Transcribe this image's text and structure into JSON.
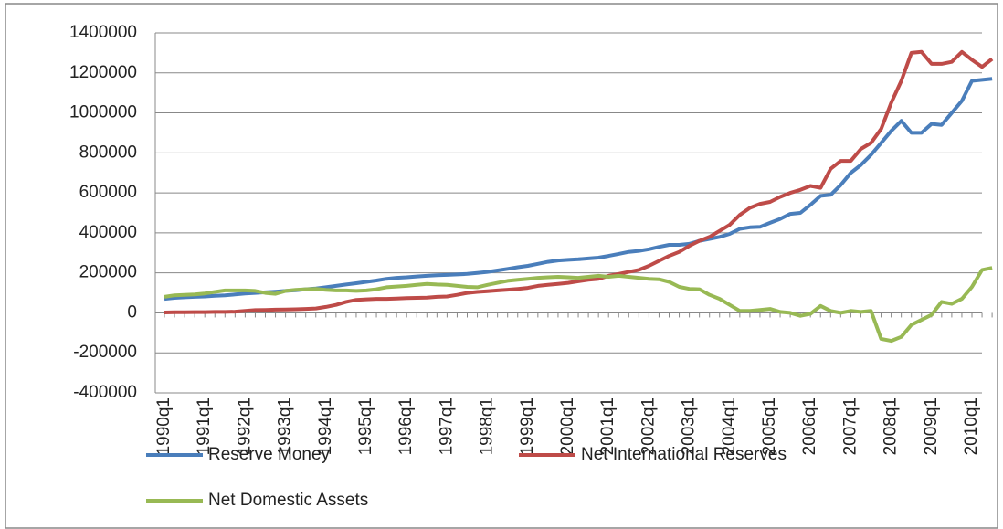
{
  "chart_data": {
    "type": "line",
    "categories": [
      "1990q1",
      null,
      null,
      null,
      "1991q1",
      null,
      null,
      null,
      "1992q1",
      null,
      null,
      null,
      "1993q1",
      null,
      null,
      null,
      "1994q1",
      null,
      null,
      null,
      "1995q1",
      null,
      null,
      null,
      "1996q1",
      null,
      null,
      null,
      "1997q1",
      null,
      null,
      null,
      "1998q1",
      null,
      null,
      null,
      "1999q1",
      null,
      null,
      null,
      "2000q1",
      null,
      null,
      null,
      "2001q1",
      null,
      null,
      null,
      "2002q1",
      null,
      null,
      null,
      "2003q1",
      null,
      null,
      null,
      "2004q1",
      null,
      null,
      null,
      "2005q1",
      null,
      null,
      null,
      "2006q1",
      null,
      null,
      null,
      "2007q1",
      null,
      null,
      null,
      "2008q1",
      null,
      null,
      null,
      "2009q1",
      null,
      null,
      null,
      "2010q1",
      null,
      null
    ],
    "series": [
      {
        "name": "Reserve Money",
        "color": "#4a7ebb",
        "values": [
          70000,
          75000,
          78000,
          80000,
          82000,
          85000,
          88000,
          92000,
          97000,
          100000,
          103000,
          106000,
          110000,
          113000,
          118000,
          122000,
          128000,
          135000,
          142000,
          148000,
          155000,
          162000,
          170000,
          175000,
          178000,
          182000,
          185000,
          188000,
          190000,
          192000,
          195000,
          200000,
          205000,
          212000,
          220000,
          228000,
          235000,
          245000,
          255000,
          262000,
          265000,
          268000,
          272000,
          276000,
          285000,
          295000,
          305000,
          310000,
          318000,
          330000,
          340000,
          340000,
          345000,
          360000,
          370000,
          380000,
          395000,
          420000,
          428000,
          430000,
          450000,
          470000,
          495000,
          500000,
          540000,
          585000,
          590000,
          640000,
          700000,
          740000,
          790000,
          850000,
          910000,
          960000,
          900000,
          900000,
          945000,
          940000,
          1000000,
          1060000,
          1160000,
          1165000,
          1170000
        ]
      },
      {
        "name": "Net International Reserves",
        "color": "#be4b48",
        "values": [
          2000,
          3000,
          3000,
          4000,
          4000,
          5000,
          5000,
          6000,
          10000,
          14000,
          15000,
          16000,
          17000,
          18000,
          20000,
          22000,
          30000,
          40000,
          55000,
          65000,
          68000,
          70000,
          70000,
          72000,
          74000,
          75000,
          76000,
          80000,
          82000,
          90000,
          100000,
          105000,
          108000,
          112000,
          116000,
          120000,
          125000,
          135000,
          140000,
          145000,
          150000,
          158000,
          165000,
          170000,
          185000,
          195000,
          205000,
          215000,
          235000,
          260000,
          285000,
          305000,
          335000,
          360000,
          380000,
          410000,
          440000,
          490000,
          525000,
          545000,
          555000,
          580000,
          600000,
          615000,
          635000,
          625000,
          720000,
          760000,
          760000,
          820000,
          850000,
          920000,
          1050000,
          1160000,
          1300000,
          1305000,
          1245000,
          1245000,
          1255000,
          1305000,
          1265000,
          1230000,
          1270000
        ]
      },
      {
        "name": "Net Domestic Assets",
        "color": "#98b954",
        "values": [
          80000,
          88000,
          90000,
          92000,
          97000,
          105000,
          112000,
          112000,
          112000,
          110000,
          100000,
          95000,
          110000,
          115000,
          118000,
          120000,
          115000,
          112000,
          112000,
          110000,
          112000,
          118000,
          128000,
          132000,
          135000,
          140000,
          145000,
          142000,
          140000,
          135000,
          130000,
          128000,
          140000,
          150000,
          160000,
          165000,
          170000,
          175000,
          178000,
          180000,
          178000,
          175000,
          180000,
          185000,
          180000,
          185000,
          180000,
          175000,
          170000,
          168000,
          155000,
          130000,
          120000,
          118000,
          90000,
          70000,
          40000,
          10000,
          10000,
          15000,
          20000,
          5000,
          0,
          -15000,
          -5000,
          35000,
          10000,
          0,
          10000,
          5000,
          10000,
          -130000,
          -140000,
          -120000,
          -60000,
          -35000,
          -10000,
          55000,
          45000,
          70000,
          130000,
          215000,
          225000
        ]
      }
    ],
    "ylim": [
      -400000,
      1400000
    ],
    "yticks": [
      -400000,
      -200000,
      0,
      200000,
      400000,
      600000,
      800000,
      1000000,
      1200000,
      1400000
    ],
    "grid": true
  }
}
